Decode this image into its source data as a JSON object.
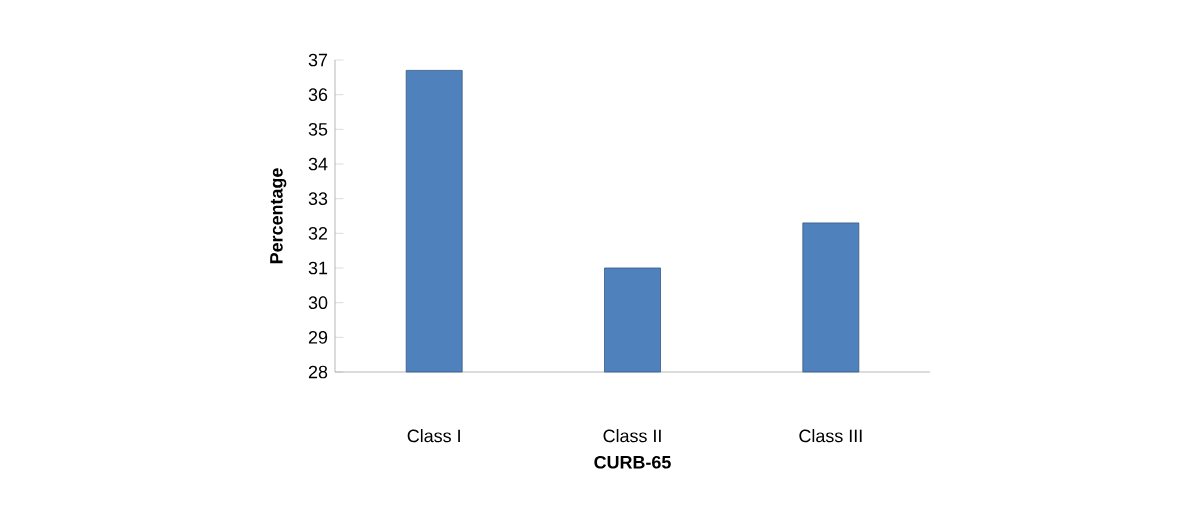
{
  "chart_data": {
    "type": "bar",
    "xlabel": "CURB-65",
    "ylabel": "Percentage",
    "categories": [
      "Class I",
      "Class II",
      "Class III"
    ],
    "values": [
      36.7,
      31.0,
      32.3
    ],
    "color": "#4f81bd",
    "ylim": [
      28,
      37
    ],
    "yticks": [
      28,
      29,
      30,
      31,
      32,
      33,
      34,
      35,
      36,
      37
    ],
    "grid": false
  }
}
